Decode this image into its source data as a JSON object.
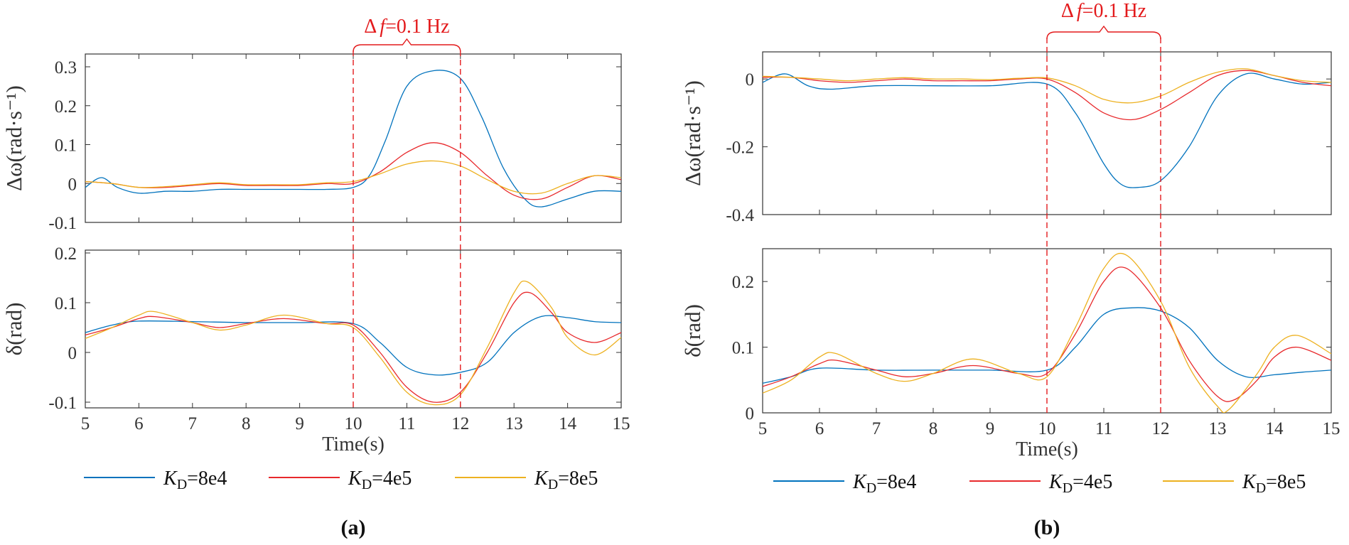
{
  "chart_data": [
    {
      "panel": "(a)",
      "subplots": [
        {
          "type": "line",
          "ylabel": "Δω(rad·s⁻¹)",
          "xlim": [
            5,
            15
          ],
          "ylim": [
            -0.1,
            0.3
          ],
          "yticks": [
            "0.3",
            "0.2",
            "0.1",
            "0",
            "-0.1"
          ],
          "series": [
            {
              "name": "KD=8e4",
              "x": [
                5,
                5.3,
                5.6,
                6,
                6.5,
                7,
                7.5,
                8,
                8.5,
                9,
                9.5,
                10,
                10.3,
                10.6,
                11,
                11.5,
                12,
                12.4,
                12.8,
                13.2,
                13.5,
                14,
                14.5,
                15
              ],
              "y": [
                -0.01,
                0.015,
                -0.01,
                -0.025,
                -0.02,
                -0.02,
                -0.015,
                -0.015,
                -0.015,
                -0.015,
                -0.015,
                -0.01,
                0.02,
                0.11,
                0.25,
                0.29,
                0.27,
                0.17,
                0.04,
                -0.04,
                -0.06,
                -0.04,
                -0.02,
                -0.02
              ]
            },
            {
              "name": "KD=4e5",
              "x": [
                5,
                5.5,
                6,
                6.5,
                7,
                7.5,
                8,
                8.5,
                9,
                9.5,
                10,
                10.5,
                11,
                11.5,
                12,
                12.5,
                13,
                13.5,
                14,
                14.5,
                15
              ],
              "y": [
                0.005,
                0.0,
                -0.01,
                -0.01,
                -0.005,
                0.0,
                -0.005,
                -0.005,
                -0.005,
                0.0,
                0.0,
                0.03,
                0.08,
                0.105,
                0.08,
                0.02,
                -0.03,
                -0.04,
                -0.01,
                0.02,
                0.01
              ]
            },
            {
              "name": "KD=8e5",
              "x": [
                5,
                5.5,
                6,
                6.5,
                7,
                7.5,
                8,
                8.5,
                9,
                9.5,
                10,
                10.5,
                11,
                11.5,
                12,
                12.5,
                13,
                13.5,
                14,
                14.5,
                15
              ],
              "y": [
                0.005,
                0.0,
                -0.01,
                -0.008,
                -0.003,
                0.002,
                -0.003,
                -0.003,
                -0.003,
                0.002,
                0.005,
                0.025,
                0.05,
                0.058,
                0.045,
                0.01,
                -0.02,
                -0.025,
                0.0,
                0.02,
                0.015
              ]
            }
          ]
        },
        {
          "type": "line",
          "ylabel": "δ(rad)",
          "xlim": [
            5,
            15
          ],
          "ylim": [
            -0.1,
            0.2
          ],
          "yticks": [
            "0.2",
            "0.1",
            "0",
            "-0.1"
          ],
          "xticks": [
            "5",
            "6",
            "7",
            "8",
            "9",
            "10",
            "11",
            "12",
            "13",
            "14",
            "15"
          ],
          "xlabel": "Time(s)",
          "series": [
            {
              "name": "KD=8e4",
              "x": [
                5,
                5.5,
                6,
                7,
                8,
                9,
                10,
                10.5,
                11,
                11.5,
                12,
                12.5,
                13,
                13.5,
                14,
                14.5,
                15
              ],
              "y": [
                0.04,
                0.055,
                0.063,
                0.062,
                0.06,
                0.06,
                0.058,
                0.02,
                -0.03,
                -0.045,
                -0.04,
                -0.02,
                0.04,
                0.072,
                0.07,
                0.062,
                0.06
              ]
            },
            {
              "name": "KD=4e5",
              "x": [
                5,
                5.5,
                6,
                6.3,
                7,
                7.5,
                8,
                8.7,
                9.5,
                10,
                10.5,
                11,
                11.5,
                12,
                12.5,
                13,
                13.3,
                13.7,
                14,
                14.5,
                15
              ],
              "y": [
                0.035,
                0.05,
                0.068,
                0.072,
                0.06,
                0.05,
                0.058,
                0.068,
                0.058,
                0.055,
                0.0,
                -0.07,
                -0.1,
                -0.08,
                0.0,
                0.1,
                0.12,
                0.08,
                0.04,
                0.02,
                0.04
              ]
            },
            {
              "name": "KD=8e5",
              "x": [
                5,
                5.5,
                6,
                6.3,
                7,
                7.5,
                8,
                8.7,
                9.5,
                10,
                10.5,
                11,
                11.5,
                12,
                12.5,
                13,
                13.25,
                13.7,
                14,
                14.5,
                15
              ],
              "y": [
                0.028,
                0.05,
                0.075,
                0.082,
                0.06,
                0.045,
                0.055,
                0.075,
                0.058,
                0.05,
                -0.01,
                -0.08,
                -0.105,
                -0.085,
                0.01,
                0.12,
                0.142,
                0.09,
                0.03,
                -0.005,
                0.03
              ]
            }
          ]
        }
      ],
      "annotation": {
        "text_delta": "Δ",
        "text_f": "f",
        "text_rest": "=0.1 Hz",
        "x_start": 10,
        "x_end": 12
      }
    },
    {
      "panel": "(b)",
      "subplots": [
        {
          "type": "line",
          "ylabel": "Δω(rad·s⁻¹)",
          "xlim": [
            5,
            15
          ],
          "ylim": [
            -0.4,
            0.08
          ],
          "yticks": [
            "0",
            "-0.2",
            "-0.4"
          ],
          "series": [
            {
              "name": "KD=8e4",
              "x": [
                5,
                5.4,
                5.8,
                6.2,
                7,
                8,
                9,
                10,
                10.5,
                11,
                11.3,
                11.6,
                12,
                12.5,
                13,
                13.5,
                14,
                14.5,
                15
              ],
              "y": [
                -0.01,
                0.015,
                -0.02,
                -0.03,
                -0.02,
                -0.02,
                -0.02,
                -0.015,
                -0.1,
                -0.25,
                -0.31,
                -0.32,
                -0.3,
                -0.2,
                -0.05,
                0.015,
                0.0,
                -0.015,
                -0.01
              ]
            },
            {
              "name": "KD=4e5",
              "x": [
                5,
                5.5,
                6,
                6.5,
                7,
                7.5,
                8,
                8.5,
                9,
                9.5,
                10,
                10.5,
                11,
                11.5,
                12,
                12.5,
                13,
                13.5,
                14,
                14.5,
                15
              ],
              "y": [
                0.005,
                0.005,
                -0.005,
                -0.01,
                -0.005,
                0.0,
                -0.005,
                -0.005,
                -0.005,
                0.0,
                0.0,
                -0.04,
                -0.1,
                -0.12,
                -0.09,
                -0.04,
                0.01,
                0.025,
                0.01,
                -0.01,
                -0.02
              ]
            },
            {
              "name": "KD=8e5",
              "x": [
                5,
                5.5,
                6,
                6.5,
                7,
                7.5,
                8,
                8.5,
                9,
                9.5,
                10,
                10.5,
                11,
                11.5,
                12,
                12.5,
                13,
                13.5,
                14,
                14.5,
                15
              ],
              "y": [
                0.008,
                0.005,
                0.0,
                -0.005,
                0.0,
                0.004,
                0.0,
                0.0,
                -0.002,
                0.002,
                0.003,
                -0.02,
                -0.06,
                -0.07,
                -0.05,
                -0.01,
                0.02,
                0.03,
                0.01,
                -0.005,
                -0.01
              ]
            }
          ]
        },
        {
          "type": "line",
          "ylabel": "δ(rad)",
          "xlim": [
            5,
            15
          ],
          "ylim": [
            0,
            0.25
          ],
          "yticks": [
            "0.2",
            "0.1",
            "0"
          ],
          "xticks": [
            "5",
            "6",
            "7",
            "8",
            "9",
            "10",
            "11",
            "12",
            "13",
            "14",
            "15"
          ],
          "xlabel": "Time(s)",
          "series": [
            {
              "name": "KD=8e4",
              "x": [
                5,
                5.5,
                6,
                7,
                8,
                9,
                10,
                10.5,
                11,
                11.5,
                12,
                12.5,
                13,
                13.5,
                14,
                14.5,
                15
              ],
              "y": [
                0.045,
                0.055,
                0.068,
                0.065,
                0.065,
                0.065,
                0.065,
                0.1,
                0.15,
                0.16,
                0.155,
                0.13,
                0.08,
                0.055,
                0.058,
                0.062,
                0.065
              ]
            },
            {
              "name": "KD=4e5",
              "x": [
                5,
                5.5,
                6,
                6.3,
                7,
                7.5,
                8,
                8.7,
                9.5,
                10,
                10.5,
                11,
                11.4,
                12,
                12.5,
                13,
                13.3,
                13.7,
                14,
                14.4,
                15
              ],
              "y": [
                0.04,
                0.055,
                0.075,
                0.08,
                0.065,
                0.055,
                0.06,
                0.072,
                0.06,
                0.06,
                0.12,
                0.2,
                0.22,
                0.16,
                0.08,
                0.025,
                0.02,
                0.05,
                0.085,
                0.1,
                0.08
              ]
            },
            {
              "name": "KD=8e5",
              "x": [
                5,
                5.5,
                6,
                6.3,
                7,
                7.5,
                8,
                8.7,
                9.5,
                10,
                10.5,
                11,
                11.4,
                12,
                12.5,
                13,
                13.2,
                13.7,
                14,
                14.4,
                15
              ],
              "y": [
                0.03,
                0.05,
                0.085,
                0.09,
                0.06,
                0.048,
                0.06,
                0.082,
                0.06,
                0.055,
                0.13,
                0.22,
                0.24,
                0.17,
                0.07,
                0.01,
                0.005,
                0.06,
                0.1,
                0.118,
                0.09
              ]
            }
          ]
        }
      ],
      "annotation": {
        "text_delta": "Δ",
        "text_f": "f",
        "text_rest": "=0.1 Hz",
        "x_start": 10,
        "x_end": 12
      }
    }
  ],
  "legend": [
    {
      "prefix": "K",
      "sub": "D",
      "suffix": "=8e4",
      "color": "#0072bd"
    },
    {
      "prefix": "K",
      "sub": "D",
      "suffix": "=4e5",
      "color": "#e8292c"
    },
    {
      "prefix": "K",
      "sub": "D",
      "suffix": "=8e5",
      "color": "#edb120"
    }
  ],
  "colors": {
    "annotation": "#e31a1c",
    "axis": "#333333"
  }
}
